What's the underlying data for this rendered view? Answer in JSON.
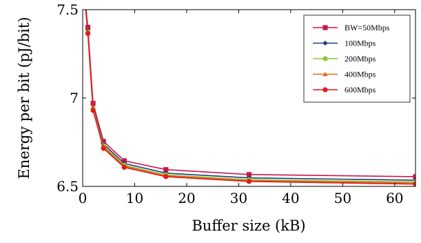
{
  "chart_data": {
    "type": "line",
    "xlabel": "Buffer size (kB)",
    "ylabel": "Energy per bit (pJ/bit)",
    "xlim": [
      0,
      64
    ],
    "ylim": [
      6.5,
      7.5
    ],
    "xticks": [
      0,
      10,
      20,
      30,
      40,
      50,
      60
    ],
    "yticks": [
      6.5,
      7,
      7.5
    ],
    "xtick_labels": [
      "0",
      "10",
      "20",
      "30",
      "40",
      "50",
      "60"
    ],
    "ytick_labels": [
      "6.5",
      "7",
      "7.5"
    ],
    "legend_position": "top-right",
    "grid": false,
    "x": [
      0.5,
      1,
      2,
      4,
      8,
      16,
      32,
      64
    ],
    "series": [
      {
        "name": "BW=50Mbps",
        "color": "#c8174b",
        "marker": "square",
        "values": [
          7.55,
          7.4,
          6.97,
          6.755,
          6.645,
          6.595,
          6.567,
          6.555
        ]
      },
      {
        "name": "100Mbps",
        "color": "#1f3a7a",
        "marker": "diamond",
        "values": [
          7.54,
          7.385,
          6.945,
          6.74,
          6.63,
          6.575,
          6.548,
          6.535
        ]
      },
      {
        "name": "200Mbps",
        "color": "#8ac832",
        "marker": "circle",
        "values": [
          7.535,
          7.375,
          6.94,
          6.73,
          6.62,
          6.565,
          6.538,
          6.525
        ]
      },
      {
        "name": "400Mbps",
        "color": "#e06a1e",
        "marker": "triangle",
        "values": [
          7.53,
          7.37,
          6.935,
          6.722,
          6.614,
          6.56,
          6.532,
          6.519
        ]
      },
      {
        "name": "600Mbps",
        "color": "#e8171c",
        "marker": "circle",
        "values": [
          7.525,
          7.365,
          6.93,
          6.715,
          6.608,
          6.555,
          6.528,
          6.513
        ]
      }
    ]
  }
}
